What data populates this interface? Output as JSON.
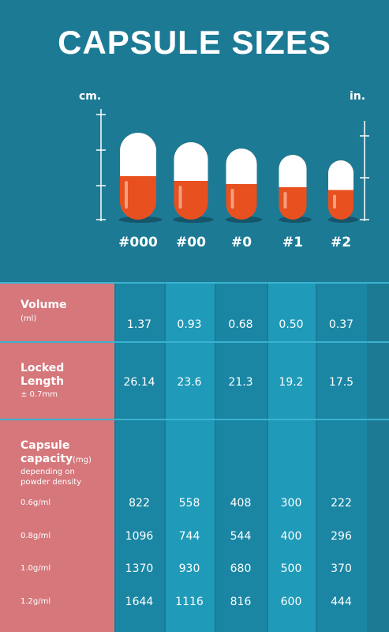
{
  "title": "CAPSULE SIZES",
  "units": {
    "left": "cm.",
    "right": "in."
  },
  "sizes": [
    "#000",
    "#00",
    "#0",
    "#1",
    "#2"
  ],
  "table": {
    "rows": [
      {
        "label": "Volume",
        "sub": "(ml)",
        "values": [
          "1.37",
          "0.93",
          "0.68",
          "0.50",
          "0.37"
        ]
      },
      {
        "label": "Locked Length",
        "sub": "± 0.7mm",
        "values": [
          "26.14",
          "23.6",
          "21.3",
          "19.2",
          "17.5"
        ]
      }
    ],
    "capacity": {
      "label": "Capsule capacity",
      "unit": "(mg)",
      "note": "depending on powder density",
      "rows": [
        {
          "density": "0.6g/ml",
          "values": [
            "822",
            "558",
            "408",
            "300",
            "222"
          ]
        },
        {
          "density": "0.8g/ml",
          "values": [
            "1096",
            "744",
            "544",
            "400",
            "296"
          ]
        },
        {
          "density": "1.0g/ml",
          "values": [
            "1370",
            "930",
            "680",
            "500",
            "370"
          ]
        },
        {
          "density": "1.2g/ml",
          "values": [
            "1644",
            "1116",
            "816",
            "600",
            "444"
          ]
        }
      ]
    }
  }
}
